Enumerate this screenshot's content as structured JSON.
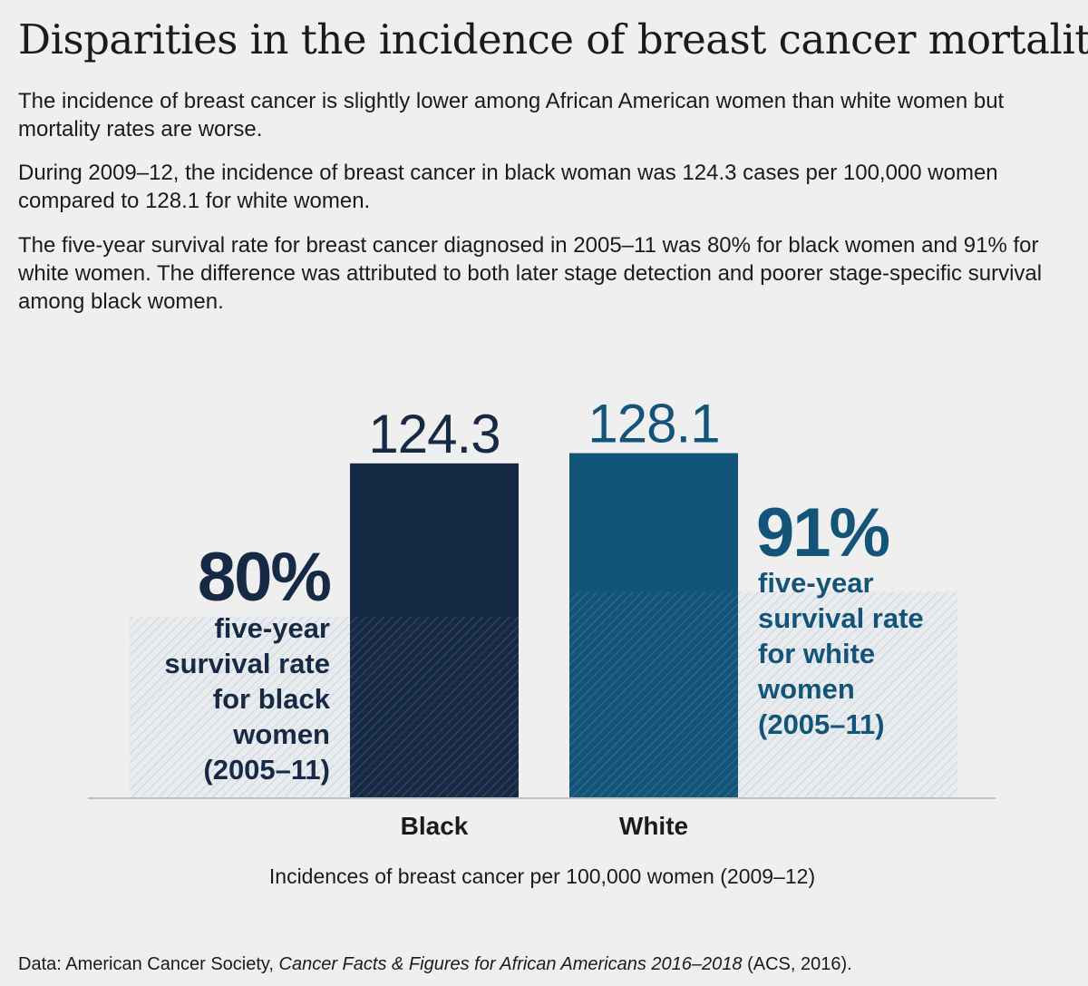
{
  "title": "Disparities in the incidence of breast cancer mortality",
  "paragraphs": [
    "The incidence of breast cancer is slightly lower among African American women than white women but mortality rates are worse.",
    "During 2009–12, the incidence of breast cancer in black woman was 124.3 cases per 100,000 women compared to 128.1 for white women.",
    "The five-year survival rate for breast cancer diagnosed in 2005–11 was 80% for black women and 91% for white women. The difference was attributed to both later stage detection and poorer stage-specific survival among black women."
  ],
  "colors": {
    "black_bar": "#172a45",
    "white_bar": "#135579",
    "black_text": "#172a45",
    "white_text": "#135579",
    "hatch_bg": "#d7dee6",
    "baseline": "#bfbfbf"
  },
  "chart_data": {
    "type": "bar",
    "title": "Incidences of breast cancer per 100,000 women (2009–12)",
    "xlabel": "Incidences of breast cancer per 100,000 women (2009–12)",
    "ylabel": "",
    "categories": [
      "Black",
      "White"
    ],
    "values": [
      124.3,
      128.1
    ],
    "value_labels": [
      "124.3",
      "128.1"
    ],
    "survival_rate": {
      "values": [
        80,
        91
      ],
      "big_labels": [
        "80%",
        "91%"
      ],
      "captions": [
        [
          "five-year",
          "survival rate",
          "for black",
          "women",
          "(2005–11)"
        ],
        [
          "five-year",
          "survival rate",
          "for white",
          "women",
          "(2005–11)"
        ]
      ]
    }
  },
  "source": {
    "prefix": "Data: American Cancer Society, ",
    "title": "Cancer Facts & Figures for African Americans 2016–2018",
    "suffix": " (ACS, 2016)."
  }
}
